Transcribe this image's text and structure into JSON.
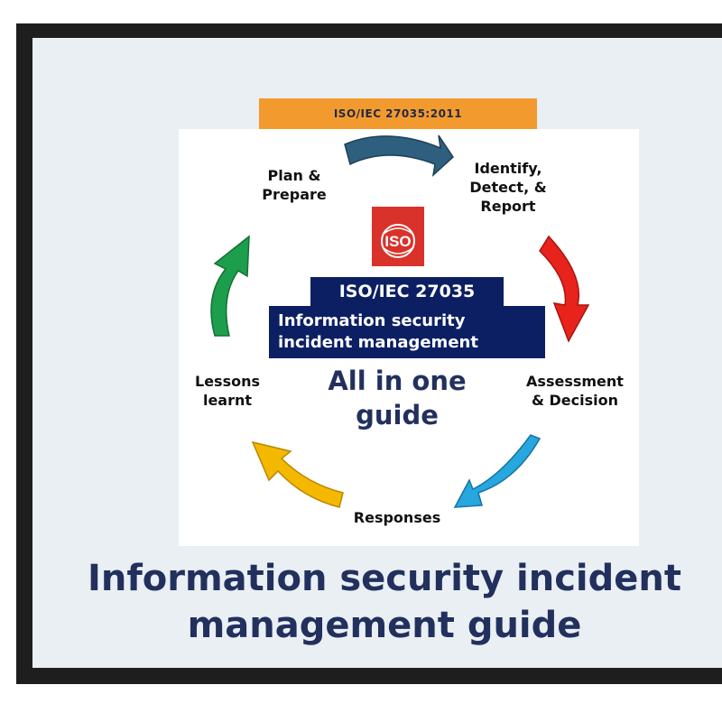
{
  "banner": {
    "text": "ISO/IEC 27035:2011"
  },
  "stages": {
    "plan": "Plan &\nPrepare",
    "identify": "Identify,\nDetect, &\nReport",
    "assess": "Assessment\n& Decision",
    "responses": "Responses",
    "lessons": "Lessons\nlearnt"
  },
  "logo": {
    "text": "ISO",
    "color": "#d9322a"
  },
  "standard": {
    "code": "ISO/IEC 27035",
    "title": "Information security\nincident management"
  },
  "tagline": "All in one\nguide",
  "title": "Information security incident\nmanagement guide",
  "colors": {
    "arrow_plan_to_identify": "#2e5f7e",
    "arrow_identify_to_assess": "#e8231c",
    "arrow_assess_to_responses": "#27a6e0",
    "arrow_responses_to_lessons": "#f5b800",
    "arrow_lessons_to_plan": "#1d9e4c",
    "navy": "#0c1f63",
    "title_text": "#22305e"
  }
}
